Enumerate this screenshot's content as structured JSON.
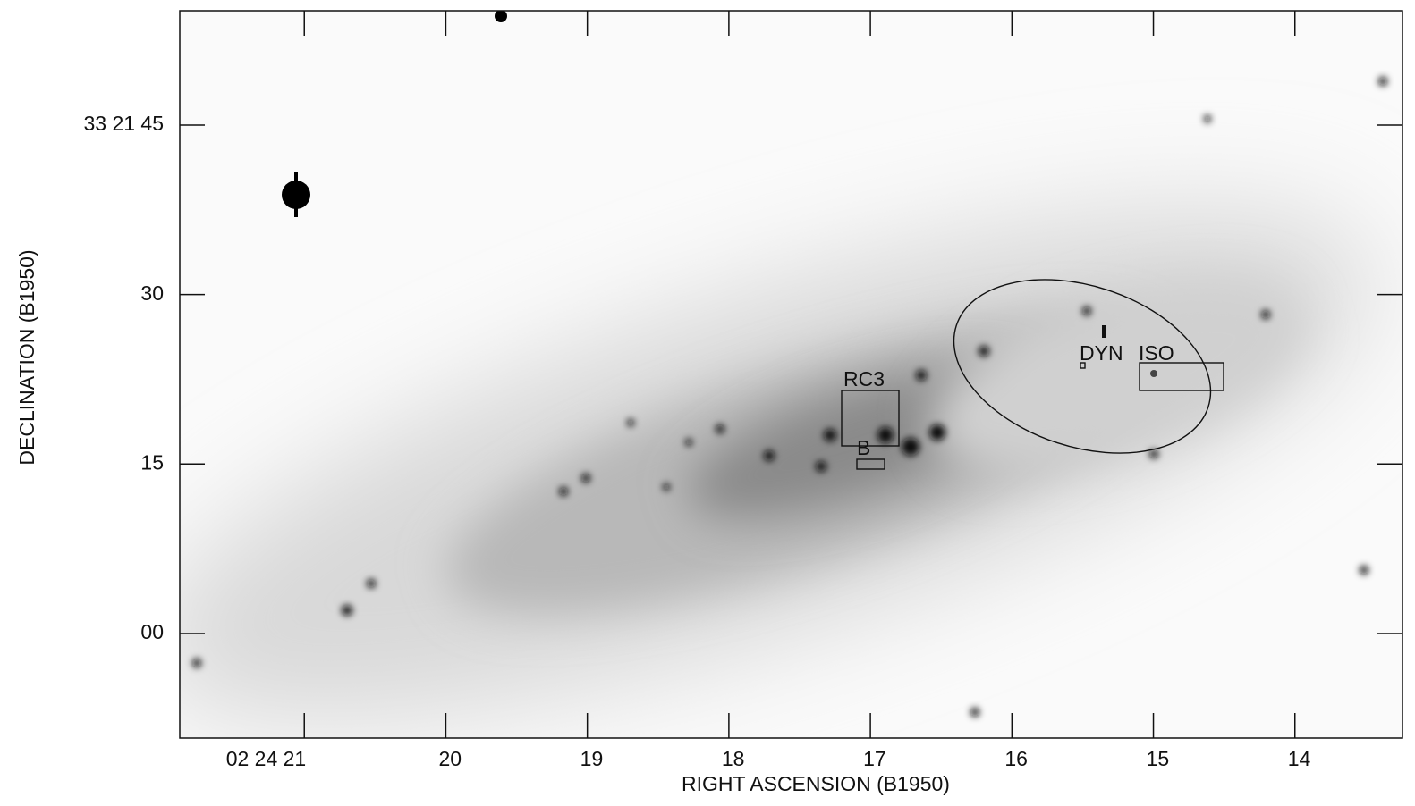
{
  "chart_data": {
    "type": "image",
    "xlabel": "RIGHT ASCENSION (B1950)",
    "ylabel": "DECLINATION (B1950)",
    "xlim": [
      21.88,
      13.24
    ],
    "ylim": [
      -9.26,
      55.13
    ],
    "xticks": [
      {
        "value": 21,
        "label": "02 24 21"
      },
      20,
      19,
      18,
      17,
      16,
      15,
      14
    ],
    "yticks": [
      {
        "value": 45,
        "label": "33 21 45"
      },
      30,
      15,
      {
        "value": 0,
        "label": "00"
      }
    ],
    "annotations": [
      "RC3",
      "B",
      "DYN",
      "ISO"
    ]
  }
}
